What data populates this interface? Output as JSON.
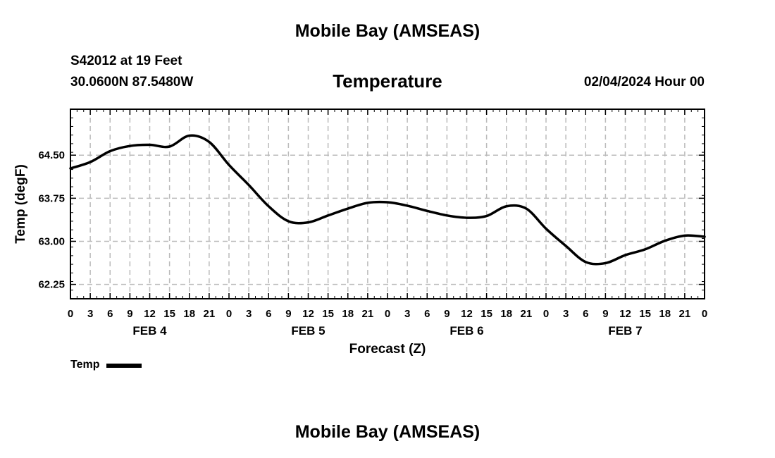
{
  "header": {
    "title": "Mobile Bay (AMSEAS)",
    "station": "S42012 at 19 Feet",
    "coords": "30.0600N  87.5480W",
    "subtitle": "Temperature",
    "run_time": "02/04/2024 Hour 00"
  },
  "footer": {
    "title": "Mobile Bay (AMSEAS)"
  },
  "chart_data": {
    "type": "line",
    "title": "Temperature",
    "xlabel": "Forecast (Z)",
    "ylabel": "Temp (degF)",
    "ylim": [
      62.0,
      65.3
    ],
    "xlim": [
      0,
      96
    ],
    "yticks": [
      62.25,
      63.0,
      63.75,
      64.5
    ],
    "ytick_labels": [
      "62.25",
      "63.00",
      "63.75",
      "64.50"
    ],
    "xticks": [
      0,
      3,
      6,
      9,
      12,
      15,
      18,
      21,
      24,
      27,
      30,
      33,
      36,
      39,
      42,
      45,
      48,
      51,
      54,
      57,
      60,
      63,
      66,
      69,
      72,
      75,
      78,
      81,
      84,
      87,
      90,
      93,
      96
    ],
    "xtick_labels": [
      "0",
      "3",
      "6",
      "9",
      "12",
      "15",
      "18",
      "21",
      "0",
      "3",
      "6",
      "9",
      "12",
      "15",
      "18",
      "21",
      "0",
      "3",
      "6",
      "9",
      "12",
      "15",
      "18",
      "21",
      "0",
      "3",
      "6",
      "9",
      "12",
      "15",
      "18",
      "21",
      "0"
    ],
    "day_labels": [
      {
        "label": "FEB 4",
        "hour": 12
      },
      {
        "label": "FEB 5",
        "hour": 36
      },
      {
        "label": "FEB 6",
        "hour": 60
      },
      {
        "label": "FEB 7",
        "hour": 84
      }
    ],
    "grid": true,
    "legend_position": "bottom-left",
    "series": [
      {
        "name": "Temp",
        "color": "#000000",
        "x": [
          0,
          3,
          6,
          9,
          12,
          15,
          18,
          21,
          24,
          27,
          30,
          33,
          36,
          39,
          42,
          45,
          48,
          51,
          54,
          57,
          60,
          63,
          66,
          69,
          72,
          75,
          78,
          81,
          84,
          87,
          90,
          93,
          96
        ],
        "y": [
          64.27,
          64.38,
          64.57,
          64.66,
          64.68,
          64.65,
          64.84,
          64.73,
          64.33,
          63.98,
          63.61,
          63.35,
          63.33,
          63.45,
          63.57,
          63.67,
          63.68,
          63.62,
          63.53,
          63.45,
          63.41,
          63.44,
          63.61,
          63.57,
          63.22,
          62.92,
          62.64,
          62.62,
          62.76,
          62.86,
          63.01,
          63.1,
          63.08
        ]
      }
    ]
  }
}
